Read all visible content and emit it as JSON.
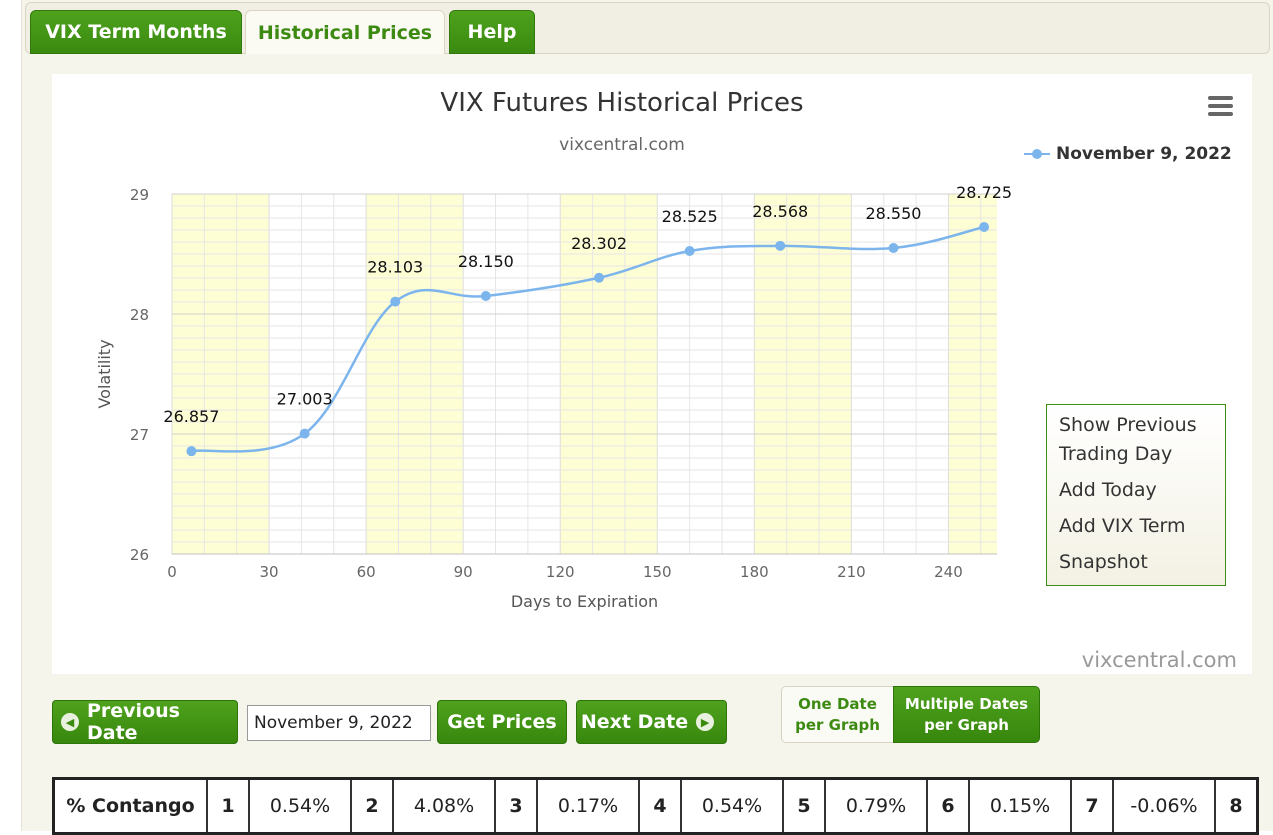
{
  "tabs": [
    "VIX Term Months",
    "Historical Prices",
    "Help"
  ],
  "chart_data": {
    "type": "line",
    "title": "VIX Futures Historical Prices",
    "subtitle": "vixcentral.com",
    "xlabel": "Days to Expiration",
    "ylabel": "Volatility",
    "xlim": [
      0,
      255
    ],
    "ylim": [
      26,
      29
    ],
    "x_ticks": [
      "0",
      "30",
      "60",
      "90",
      "120",
      "150",
      "180",
      "210",
      "240"
    ],
    "y_ticks": [
      "26",
      "27",
      "28",
      "29"
    ],
    "series": [
      {
        "name": "November 9, 2022",
        "x": [
          6,
          41,
          69,
          97,
          132,
          160,
          188,
          223,
          251
        ],
        "values": [
          26.857,
          27.003,
          28.103,
          28.15,
          28.302,
          28.525,
          28.568,
          28.55,
          28.725
        ],
        "labels": [
          "26.857",
          "27.003",
          "28.103",
          "28.150",
          "28.302",
          "28.525",
          "28.568",
          "28.550",
          "28.725"
        ],
        "color": "#7cb5ec"
      }
    ],
    "bands": [
      [
        0,
        30
      ],
      [
        60,
        90
      ],
      [
        120,
        150
      ],
      [
        180,
        210
      ],
      [
        240,
        255
      ]
    ],
    "band_color": "#fefed5",
    "grid": true,
    "legend_position": "top-right",
    "credit": "vixcentral.com"
  },
  "context_menu": [
    "Show Previous Trading Day",
    "Add Today",
    "Add VIX Term",
    "Snapshot"
  ],
  "controls": {
    "previous": "Previous Date",
    "date_value": "November 9, 2022",
    "get_prices": "Get Prices",
    "next": "Next Date",
    "one_date": "One Date per Graph",
    "multiple_dates": "Multiple Dates per Graph"
  },
  "contango": {
    "header": "% Contango",
    "cells": [
      {
        "month": "1",
        "value": "0.54%"
      },
      {
        "month": "2",
        "value": "4.08%"
      },
      {
        "month": "3",
        "value": "0.17%"
      },
      {
        "month": "4",
        "value": "0.54%"
      },
      {
        "month": "5",
        "value": "0.79%"
      },
      {
        "month": "6",
        "value": "0.15%"
      },
      {
        "month": "7",
        "value": "-0.06%"
      },
      {
        "month": "8",
        "value": ""
      }
    ]
  },
  "colors": {
    "green": "#3d8a12",
    "line": "#7cb5ec",
    "band": "#fefed5"
  }
}
